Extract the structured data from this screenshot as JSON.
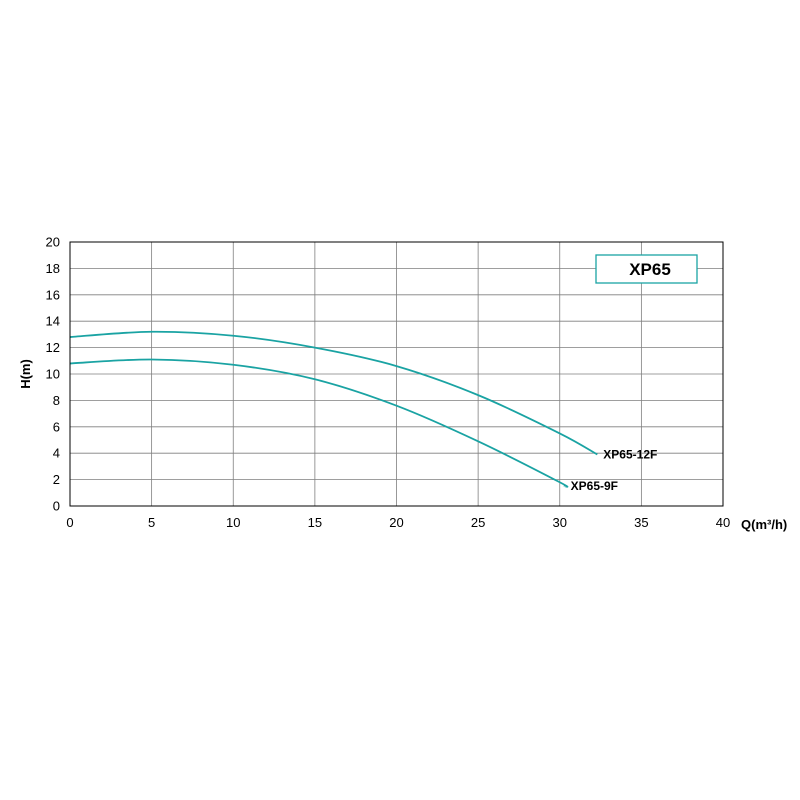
{
  "chart_data": {
    "type": "line",
    "title": "",
    "xlabel": "Q(m³/h)",
    "ylabel": "H(m)",
    "xlim": [
      0,
      40
    ],
    "ylim": [
      0,
      20
    ],
    "x_ticks": [
      0,
      5,
      10,
      15,
      20,
      25,
      30,
      35,
      40
    ],
    "y_ticks": [
      0,
      2,
      4,
      6,
      8,
      10,
      12,
      14,
      16,
      18,
      20
    ],
    "grid": true,
    "legend_box": {
      "text": "XP65",
      "placement": "top-right",
      "border_color": "#1aa3a3"
    },
    "line_color": "#1aa3a3",
    "series": [
      {
        "name": "XP65-12F",
        "x": [
          0,
          5,
          10,
          15,
          20,
          25,
          30,
          32.3
        ],
        "y": [
          12.8,
          13.2,
          12.9,
          12.0,
          10.6,
          8.4,
          5.5,
          3.9
        ]
      },
      {
        "name": "XP65-9F",
        "x": [
          0,
          5,
          10,
          15,
          20,
          25,
          30,
          30.3
        ],
        "y": [
          10.8,
          11.1,
          10.7,
          9.6,
          7.6,
          4.9,
          1.8,
          1.5
        ]
      }
    ]
  }
}
